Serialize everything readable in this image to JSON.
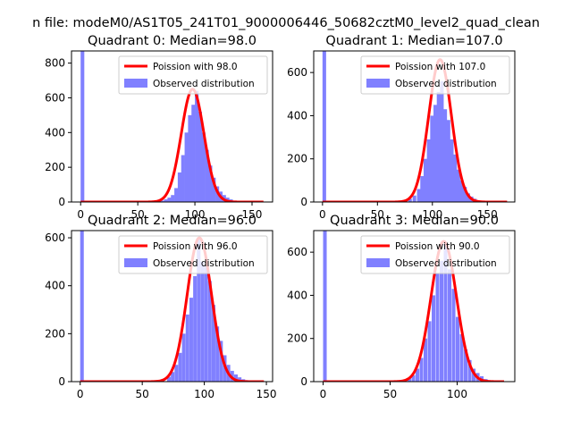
{
  "figure": {
    "suptitle": "n file: modeM0/AS1T05_241T01_9000006446_50682cztM0_level2_quad_clean"
  },
  "colors": {
    "hist": "#8080ff",
    "poisson": "#ff0000",
    "axes": "#000000"
  },
  "chart_data": [
    {
      "type": "bar",
      "title": "Quadrant 0: Median=98.0",
      "median": 98.0,
      "legend": {
        "poisson": "Poission with 98.0",
        "observed": "Observed distribution",
        "placement": "top-right"
      },
      "xlim": [
        -8,
        168
      ],
      "ylim": [
        0,
        870
      ],
      "xticks": [
        "0",
        "50",
        "100",
        "150"
      ],
      "yticks": [
        "0",
        "200",
        "400",
        "600",
        "800"
      ],
      "hist": {
        "bin_width": 3.2,
        "values": [
          [
            0,
            2000
          ],
          [
            54,
            2
          ],
          [
            64,
            3
          ],
          [
            67,
            5
          ],
          [
            70,
            8
          ],
          [
            73,
            15
          ],
          [
            76,
            25
          ],
          [
            79,
            40
          ],
          [
            82,
            80
          ],
          [
            85,
            170
          ],
          [
            88,
            270
          ],
          [
            91,
            400
          ],
          [
            94,
            500
          ],
          [
            97,
            560
          ],
          [
            100,
            640
          ],
          [
            103,
            520
          ],
          [
            106,
            400
          ],
          [
            109,
            300
          ],
          [
            112,
            210
          ],
          [
            115,
            140
          ],
          [
            118,
            90
          ],
          [
            121,
            60
          ],
          [
            124,
            40
          ],
          [
            127,
            25
          ],
          [
            130,
            15
          ],
          [
            133,
            8
          ],
          [
            136,
            4
          ],
          [
            142,
            2
          ]
        ]
      },
      "curve": {
        "lambda": 98.0,
        "peak": 650,
        "x_range": [
          0,
          160
        ]
      }
    },
    {
      "type": "bar",
      "title": "Quadrant 1: Median=107.0",
      "median": 107.0,
      "legend": {
        "poisson": "Poission with 107.0",
        "observed": "Observed distribution",
        "placement": "top-right"
      },
      "xlim": [
        -8,
        175
      ],
      "ylim": [
        0,
        700
      ],
      "xticks": [
        "0",
        "50",
        "100",
        "150"
      ],
      "yticks": [
        "0",
        "200",
        "400",
        "600"
      ],
      "hist": {
        "bin_width": 3.3,
        "values": [
          [
            0,
            2000
          ],
          [
            60,
            2
          ],
          [
            66,
            3
          ],
          [
            70,
            5
          ],
          [
            74,
            8
          ],
          [
            78,
            15
          ],
          [
            82,
            30
          ],
          [
            86,
            60
          ],
          [
            89,
            120
          ],
          [
            92,
            200
          ],
          [
            95,
            290
          ],
          [
            98,
            400
          ],
          [
            101,
            450
          ],
          [
            104,
            510
          ],
          [
            107,
            560
          ],
          [
            110,
            430
          ],
          [
            113,
            380
          ],
          [
            116,
            290
          ],
          [
            119,
            220
          ],
          [
            122,
            150
          ],
          [
            125,
            100
          ],
          [
            128,
            70
          ],
          [
            131,
            40
          ],
          [
            134,
            25
          ],
          [
            137,
            15
          ],
          [
            140,
            8
          ],
          [
            144,
            4
          ],
          [
            150,
            2
          ]
        ]
      },
      "curve": {
        "lambda": 107.0,
        "peak": 660,
        "x_range": [
          0,
          168
        ]
      }
    },
    {
      "type": "bar",
      "title": "Quadrant 2: Median=96.0",
      "median": 96.0,
      "legend": {
        "poisson": "Poission with 96.0",
        "observed": "Observed distribution",
        "placement": "top-right"
      },
      "xlim": [
        -7,
        155
      ],
      "ylim": [
        0,
        630
      ],
      "xticks": [
        "0",
        "50",
        "100",
        "150"
      ],
      "yticks": [
        "0",
        "200",
        "400",
        "600"
      ],
      "hist": {
        "bin_width": 2.9,
        "values": [
          [
            0,
            2000
          ],
          [
            55,
            3
          ],
          [
            60,
            5
          ],
          [
            65,
            10
          ],
          [
            70,
            20
          ],
          [
            73,
            40
          ],
          [
            76,
            70
          ],
          [
            79,
            120
          ],
          [
            82,
            200
          ],
          [
            85,
            280
          ],
          [
            88,
            350
          ],
          [
            91,
            440
          ],
          [
            94,
            600
          ],
          [
            97,
            500
          ],
          [
            100,
            480
          ],
          [
            103,
            420
          ],
          [
            106,
            320
          ],
          [
            109,
            230
          ],
          [
            112,
            170
          ],
          [
            115,
            110
          ],
          [
            118,
            70
          ],
          [
            121,
            45
          ],
          [
            124,
            30
          ],
          [
            127,
            18
          ],
          [
            130,
            10
          ],
          [
            133,
            6
          ],
          [
            136,
            3
          ]
        ]
      },
      "curve": {
        "lambda": 96.0,
        "peak": 600,
        "x_range": [
          0,
          148
        ]
      }
    },
    {
      "type": "bar",
      "title": "Quadrant 3: Median=90.0",
      "median": 90.0,
      "legend": {
        "poisson": "Poission with 90.0",
        "observed": "Observed distribution",
        "placement": "top-right"
      },
      "xlim": [
        -7,
        143
      ],
      "ylim": [
        0,
        700
      ],
      "xticks": [
        "0",
        "50",
        "100"
      ],
      "yticks": [
        "0",
        "200",
        "400",
        "600"
      ],
      "hist": {
        "bin_width": 2.7,
        "values": [
          [
            0,
            2000
          ],
          [
            50,
            2
          ],
          [
            55,
            4
          ],
          [
            60,
            8
          ],
          [
            63,
            15
          ],
          [
            66,
            30
          ],
          [
            69,
            60
          ],
          [
            72,
            110
          ],
          [
            75,
            200
          ],
          [
            78,
            280
          ],
          [
            81,
            400
          ],
          [
            84,
            500
          ],
          [
            87,
            560
          ],
          [
            90,
            640
          ],
          [
            93,
            520
          ],
          [
            96,
            430
          ],
          [
            99,
            300
          ],
          [
            102,
            220
          ],
          [
            105,
            150
          ],
          [
            108,
            100
          ],
          [
            111,
            60
          ],
          [
            114,
            40
          ],
          [
            117,
            25
          ],
          [
            120,
            12
          ],
          [
            123,
            6
          ],
          [
            126,
            3
          ]
        ]
      },
      "curve": {
        "lambda": 90.0,
        "peak": 650,
        "x_range": [
          0,
          135
        ]
      }
    }
  ]
}
